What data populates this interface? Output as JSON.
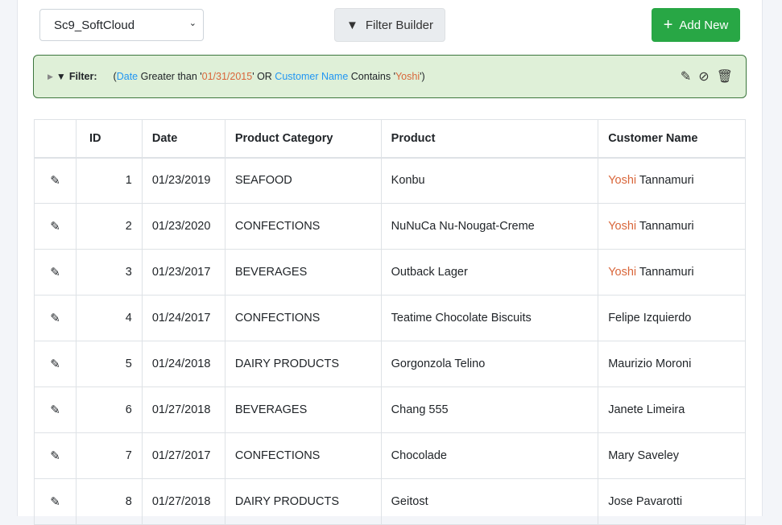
{
  "toolbar": {
    "select_value": "Sc9_SoftCloud",
    "filter_builder": "Filter Builder",
    "add_new": "Add New"
  },
  "filter": {
    "label": "Filter:",
    "open": "(",
    "f1": "Date",
    "op1": " Greater than '",
    "v1": "01/31/2015",
    "c1": "' OR ",
    "f2": "Customer Name",
    "op2": " Contains '",
    "v2": "Yoshi",
    "close": "')"
  },
  "columns": [
    "",
    "ID",
    "Date",
    "Product Category",
    "Product",
    "Customer Name"
  ],
  "rows": [
    {
      "id": "1",
      "date": "01/23/2019",
      "cat": "SEAFOOD",
      "product": "Konbu",
      "hl": "Yoshi",
      "rest": " Tannamuri"
    },
    {
      "id": "2",
      "date": "01/23/2020",
      "cat": "CONFECTIONS",
      "product": "NuNuCa Nu-Nougat-Creme",
      "hl": "Yoshi",
      "rest": " Tannamuri"
    },
    {
      "id": "3",
      "date": "01/23/2017",
      "cat": "BEVERAGES",
      "product": "Outback Lager",
      "hl": "Yoshi",
      "rest": " Tannamuri"
    },
    {
      "id": "4",
      "date": "01/24/2017",
      "cat": "CONFECTIONS",
      "product": "Teatime Chocolate Biscuits",
      "hl": "",
      "rest": "Felipe Izquierdo"
    },
    {
      "id": "5",
      "date": "01/24/2018",
      "cat": "DAIRY PRODUCTS",
      "product": "Gorgonzola Telino",
      "hl": "",
      "rest": "Maurizio Moroni"
    },
    {
      "id": "6",
      "date": "01/27/2018",
      "cat": "BEVERAGES",
      "product": "Chang 555",
      "hl": "",
      "rest": "Janete Limeira"
    },
    {
      "id": "7",
      "date": "01/27/2017",
      "cat": "CONFECTIONS",
      "product": "Chocolade",
      "hl": "",
      "rest": "Mary Saveley"
    },
    {
      "id": "8",
      "date": "01/27/2018",
      "cat": "DAIRY PRODUCTS",
      "product": "Geitost",
      "hl": "",
      "rest": "Jose Pavarotti"
    }
  ]
}
